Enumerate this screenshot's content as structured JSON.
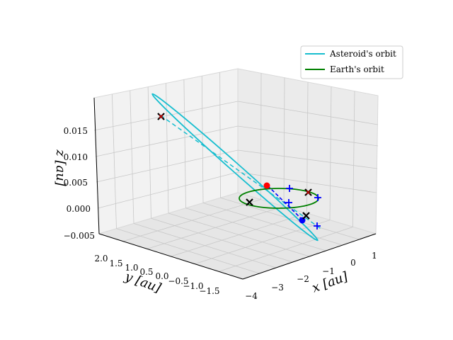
{
  "chart_data": {
    "type": "scatter",
    "projection": "3d",
    "series": [
      {
        "name": "Asteroid's orbit",
        "color": "#17becf",
        "style": "line"
      },
      {
        "name": "Earth's orbit",
        "color": "#008000",
        "style": "line"
      }
    ],
    "legend": {
      "placement": "top-right",
      "entries": [
        "Asteroid's orbit",
        "Earth's orbit"
      ]
    },
    "axes": {
      "x": {
        "label": "x [au]",
        "ticks": [
          "1",
          "0",
          "−1",
          "−2",
          "−3",
          "−4"
        ],
        "range": [
          -4,
          1
        ]
      },
      "y": {
        "label": "y [au]",
        "ticks": [
          "2.0",
          "1.5",
          "1.0",
          "0.5",
          "0.0",
          "−0.5",
          "−1.0",
          "−1.5"
        ],
        "range": [
          -1.5,
          2.0
        ]
      },
      "z": {
        "label": "z [au]",
        "ticks": [
          "0.015",
          "0.010",
          "0.005",
          "0.000",
          "−0.005"
        ],
        "range": [
          -0.005,
          0.015
        ]
      }
    },
    "grid": true,
    "markers": {
      "red_dot_color": "#ff0000",
      "blue_dot_color": "#0000ff",
      "x_marker_color": "#000000",
      "plus_marker_color": "#0000ff"
    }
  }
}
